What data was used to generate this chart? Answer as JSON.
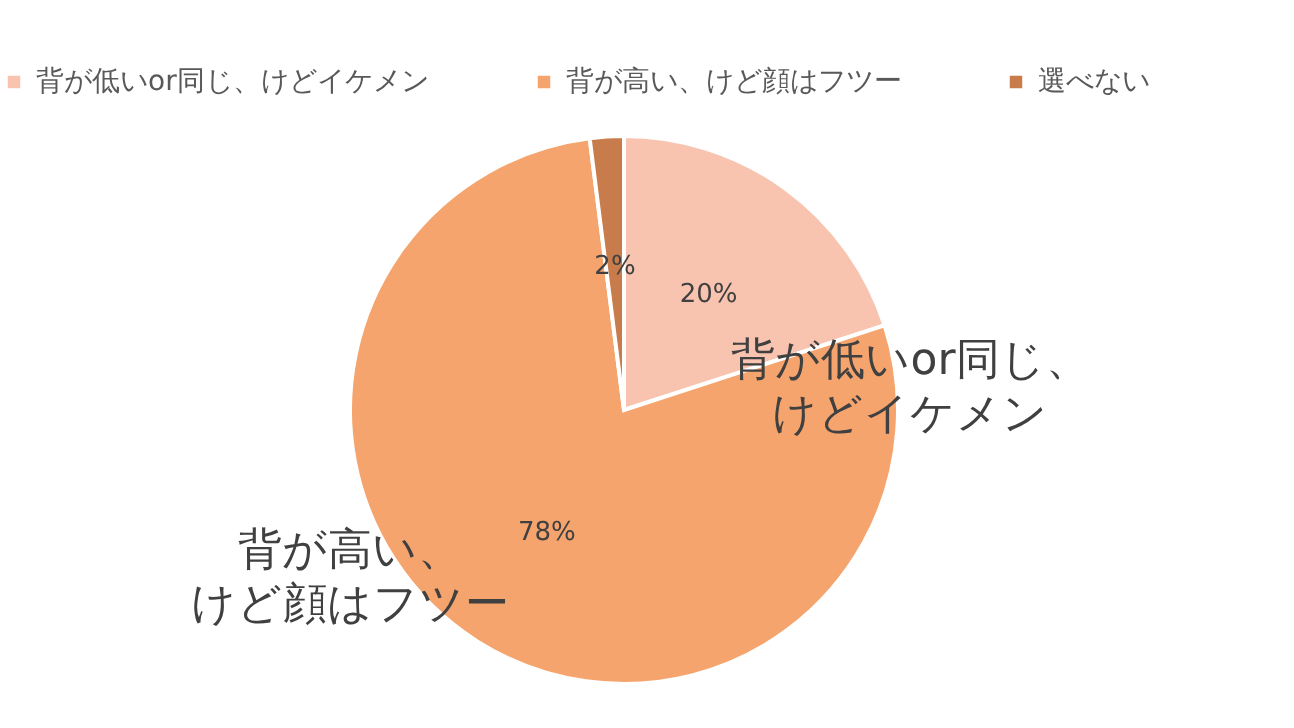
{
  "chart_data": {
    "type": "pie",
    "categories": [
      "背が低いor同じ、けどイケメン",
      "背が高い、けど顔はフツー",
      "選べない"
    ],
    "values": [
      20,
      78,
      2
    ],
    "colors": [
      "#f8c4b0",
      "#f4a46c",
      "#c87c4c"
    ],
    "value_labels": [
      "20%",
      "78%",
      "2%"
    ],
    "annotations": [
      "背が低いor同じ、けどイケメン",
      "背が高い、けど顔はフツー"
    ],
    "legend": "top"
  }
}
